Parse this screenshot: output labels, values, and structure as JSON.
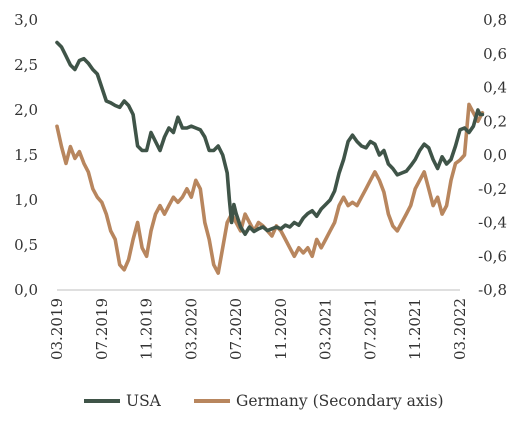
{
  "chart_data": {
    "type": "line",
    "x_ticks": [
      "03.2019",
      "07.2019",
      "11.2019",
      "03.2020",
      "07.2020",
      "11.2020",
      "03.2021",
      "07.2021",
      "11.2021",
      "03.2022"
    ],
    "left_axis": {
      "ylim": [
        0.0,
        3.0
      ],
      "ticks": [
        "0,0",
        "0,5",
        "1,0",
        "1,5",
        "2,0",
        "2,5",
        "3,0"
      ]
    },
    "right_axis": {
      "ylim": [
        -0.8,
        0.8
      ],
      "ticks": [
        "-0,8",
        "-0,6",
        "-0,4",
        "-0,2",
        "0,0",
        "0,2",
        "0,4",
        "0,6",
        "0,8"
      ]
    },
    "grid": false,
    "legend_position": "bottom",
    "series": [
      {
        "name": "USA",
        "axis": "left",
        "color": "#3f5448",
        "points": [
          [
            0.0,
            2.75
          ],
          [
            0.2,
            2.7
          ],
          [
            0.4,
            2.6
          ],
          [
            0.6,
            2.5
          ],
          [
            0.8,
            2.45
          ],
          [
            1.0,
            2.55
          ],
          [
            1.2,
            2.57
          ],
          [
            1.4,
            2.52
          ],
          [
            1.6,
            2.45
          ],
          [
            1.8,
            2.4
          ],
          [
            2.0,
            2.25
          ],
          [
            2.2,
            2.1
          ],
          [
            2.4,
            2.08
          ],
          [
            2.6,
            2.05
          ],
          [
            2.8,
            2.03
          ],
          [
            3.0,
            2.1
          ],
          [
            3.2,
            2.05
          ],
          [
            3.4,
            1.95
          ],
          [
            3.6,
            1.6
          ],
          [
            3.8,
            1.55
          ],
          [
            4.0,
            1.55
          ],
          [
            4.2,
            1.75
          ],
          [
            4.4,
            1.65
          ],
          [
            4.6,
            1.55
          ],
          [
            4.8,
            1.7
          ],
          [
            5.0,
            1.8
          ],
          [
            5.2,
            1.75
          ],
          [
            5.4,
            1.92
          ],
          [
            5.6,
            1.8
          ],
          [
            5.8,
            1.8
          ],
          [
            6.0,
            1.82
          ],
          [
            6.2,
            1.8
          ],
          [
            6.4,
            1.78
          ],
          [
            6.6,
            1.7
          ],
          [
            6.8,
            1.55
          ],
          [
            7.0,
            1.55
          ],
          [
            7.2,
            1.6
          ],
          [
            7.4,
            1.5
          ],
          [
            7.6,
            1.3
          ],
          [
            7.7,
            1.0
          ],
          [
            7.8,
            0.75
          ],
          [
            7.9,
            0.95
          ],
          [
            8.0,
            0.85
          ],
          [
            8.2,
            0.7
          ],
          [
            8.4,
            0.62
          ],
          [
            8.6,
            0.7
          ],
          [
            8.8,
            0.65
          ],
          [
            9.0,
            0.68
          ],
          [
            9.2,
            0.7
          ],
          [
            9.4,
            0.66
          ],
          [
            9.6,
            0.68
          ],
          [
            9.8,
            0.7
          ],
          [
            10.0,
            0.68
          ],
          [
            10.2,
            0.72
          ],
          [
            10.4,
            0.7
          ],
          [
            10.6,
            0.75
          ],
          [
            10.8,
            0.72
          ],
          [
            11.0,
            0.8
          ],
          [
            11.2,
            0.85
          ],
          [
            11.4,
            0.88
          ],
          [
            11.6,
            0.82
          ],
          [
            11.8,
            0.9
          ],
          [
            12.0,
            0.95
          ],
          [
            12.2,
            1.0
          ],
          [
            12.4,
            1.1
          ],
          [
            12.6,
            1.3
          ],
          [
            12.8,
            1.45
          ],
          [
            13.0,
            1.65
          ],
          [
            13.2,
            1.72
          ],
          [
            13.4,
            1.65
          ],
          [
            13.6,
            1.6
          ],
          [
            13.8,
            1.58
          ],
          [
            14.0,
            1.65
          ],
          [
            14.2,
            1.62
          ],
          [
            14.4,
            1.5
          ],
          [
            14.6,
            1.55
          ],
          [
            14.8,
            1.4
          ],
          [
            15.0,
            1.35
          ],
          [
            15.2,
            1.28
          ],
          [
            15.4,
            1.3
          ],
          [
            15.6,
            1.32
          ],
          [
            15.8,
            1.38
          ],
          [
            16.0,
            1.45
          ],
          [
            16.2,
            1.55
          ],
          [
            16.4,
            1.62
          ],
          [
            16.6,
            1.58
          ],
          [
            16.8,
            1.45
          ],
          [
            17.0,
            1.35
          ],
          [
            17.2,
            1.48
          ],
          [
            17.4,
            1.4
          ],
          [
            17.6,
            1.45
          ],
          [
            17.8,
            1.6
          ],
          [
            18.0,
            1.78
          ],
          [
            18.2,
            1.8
          ],
          [
            18.4,
            1.75
          ],
          [
            18.6,
            1.82
          ],
          [
            18.8,
            2.0
          ],
          [
            18.9,
            1.95
          ],
          [
            19.0,
            1.95
          ]
        ]
      },
      {
        "name": "Germany (Secondary axis)",
        "axis": "right",
        "color": "#b8865e",
        "points": [
          [
            0.0,
            0.17
          ],
          [
            0.2,
            0.05
          ],
          [
            0.4,
            -0.05
          ],
          [
            0.6,
            0.05
          ],
          [
            0.8,
            -0.02
          ],
          [
            1.0,
            0.02
          ],
          [
            1.2,
            -0.05
          ],
          [
            1.4,
            -0.1
          ],
          [
            1.6,
            -0.2
          ],
          [
            1.8,
            -0.25
          ],
          [
            2.0,
            -0.28
          ],
          [
            2.2,
            -0.35
          ],
          [
            2.4,
            -0.45
          ],
          [
            2.6,
            -0.5
          ],
          [
            2.8,
            -0.65
          ],
          [
            3.0,
            -0.68
          ],
          [
            3.2,
            -0.62
          ],
          [
            3.4,
            -0.5
          ],
          [
            3.6,
            -0.4
          ],
          [
            3.8,
            -0.55
          ],
          [
            4.0,
            -0.6
          ],
          [
            4.2,
            -0.45
          ],
          [
            4.4,
            -0.35
          ],
          [
            4.6,
            -0.3
          ],
          [
            4.8,
            -0.35
          ],
          [
            5.0,
            -0.3
          ],
          [
            5.2,
            -0.25
          ],
          [
            5.4,
            -0.28
          ],
          [
            5.6,
            -0.25
          ],
          [
            5.8,
            -0.2
          ],
          [
            6.0,
            -0.25
          ],
          [
            6.2,
            -0.15
          ],
          [
            6.4,
            -0.2
          ],
          [
            6.6,
            -0.4
          ],
          [
            6.8,
            -0.5
          ],
          [
            7.0,
            -0.65
          ],
          [
            7.2,
            -0.7
          ],
          [
            7.4,
            -0.55
          ],
          [
            7.6,
            -0.4
          ],
          [
            7.8,
            -0.35
          ],
          [
            8.0,
            -0.4
          ],
          [
            8.2,
            -0.45
          ],
          [
            8.4,
            -0.35
          ],
          [
            8.6,
            -0.4
          ],
          [
            8.8,
            -0.45
          ],
          [
            9.0,
            -0.4
          ],
          [
            9.2,
            -0.42
          ],
          [
            9.4,
            -0.45
          ],
          [
            9.6,
            -0.48
          ],
          [
            9.8,
            -0.42
          ],
          [
            10.0,
            -0.45
          ],
          [
            10.2,
            -0.5
          ],
          [
            10.4,
            -0.55
          ],
          [
            10.6,
            -0.6
          ],
          [
            10.8,
            -0.55
          ],
          [
            11.0,
            -0.58
          ],
          [
            11.2,
            -0.55
          ],
          [
            11.4,
            -0.6
          ],
          [
            11.6,
            -0.5
          ],
          [
            11.8,
            -0.55
          ],
          [
            12.0,
            -0.5
          ],
          [
            12.2,
            -0.45
          ],
          [
            12.4,
            -0.4
          ],
          [
            12.6,
            -0.3
          ],
          [
            12.8,
            -0.25
          ],
          [
            13.0,
            -0.3
          ],
          [
            13.2,
            -0.28
          ],
          [
            13.4,
            -0.3
          ],
          [
            13.6,
            -0.25
          ],
          [
            13.8,
            -0.2
          ],
          [
            14.0,
            -0.15
          ],
          [
            14.2,
            -0.1
          ],
          [
            14.4,
            -0.15
          ],
          [
            14.6,
            -0.22
          ],
          [
            14.8,
            -0.35
          ],
          [
            15.0,
            -0.42
          ],
          [
            15.2,
            -0.45
          ],
          [
            15.4,
            -0.4
          ],
          [
            15.6,
            -0.35
          ],
          [
            15.8,
            -0.3
          ],
          [
            16.0,
            -0.2
          ],
          [
            16.2,
            -0.15
          ],
          [
            16.4,
            -0.1
          ],
          [
            16.6,
            -0.2
          ],
          [
            16.8,
            -0.3
          ],
          [
            17.0,
            -0.25
          ],
          [
            17.2,
            -0.35
          ],
          [
            17.4,
            -0.3
          ],
          [
            17.6,
            -0.15
          ],
          [
            17.8,
            -0.05
          ],
          [
            18.0,
            -0.03
          ],
          [
            18.2,
            0.0
          ],
          [
            18.4,
            0.3
          ],
          [
            18.6,
            0.25
          ],
          [
            18.8,
            0.2
          ],
          [
            19.0,
            0.25
          ]
        ]
      }
    ]
  }
}
